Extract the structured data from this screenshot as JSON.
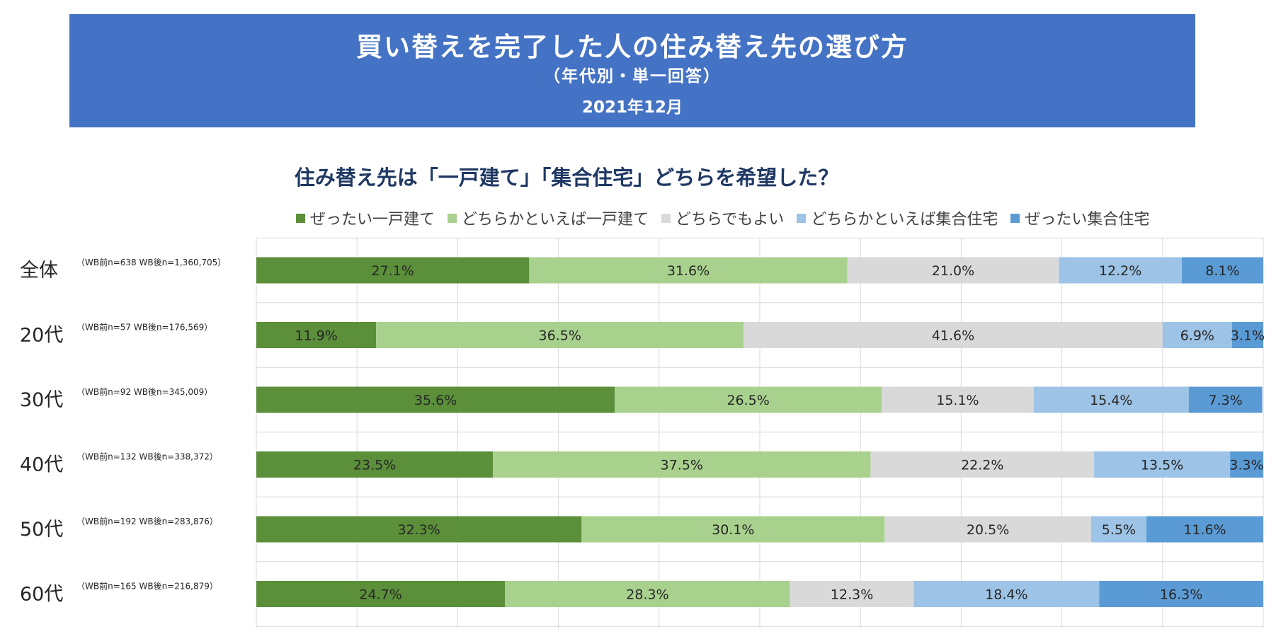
{
  "header": {
    "title": "買い替えを完了した人の住み替え先の選び方",
    "subtitle": "（年代別・単一回答）",
    "date": "2021年12月"
  },
  "chart_data": {
    "type": "bar",
    "orientation": "horizontal",
    "stacked": true,
    "percent_stacked": true,
    "title": "住み替え先は「一戸建て」「集合住宅」どちらを希望した？",
    "xlim": [
      0,
      100
    ],
    "grid": true,
    "legend_position": "top",
    "categories": [
      "全体",
      "20代",
      "30代",
      "40代",
      "50代",
      "60代"
    ],
    "sample_labels": [
      "（WB前n=638 WB後n=1,360,705）",
      "（WB前n=57 WB後n=176,569）",
      "（WB前n=92 WB後n=345,009）",
      "（WB前n=132 WB後n=338,372）",
      "（WB前n=192 WB後n=283,876）",
      "（WB前n=165 WB後n=216,879）"
    ],
    "series": [
      {
        "name": "ぜったい一戸建て",
        "color": "#5b8f3a",
        "values": [
          27.1,
          11.9,
          35.6,
          23.5,
          32.3,
          24.7
        ]
      },
      {
        "name": "どちらかといえば一戸建て",
        "color": "#a9d18e",
        "values": [
          31.6,
          36.5,
          26.5,
          37.5,
          30.1,
          28.3
        ]
      },
      {
        "name": "どちらでもよい",
        "color": "#d9d9d9",
        "values": [
          21.0,
          41.6,
          15.1,
          22.2,
          20.5,
          12.3
        ]
      },
      {
        "name": "どちらかといえば集合住宅",
        "color": "#9dc3e6",
        "values": [
          12.2,
          6.9,
          15.4,
          13.5,
          5.5,
          18.4
        ]
      },
      {
        "name": "ぜったい集合住宅",
        "color": "#5b9bd5",
        "values": [
          8.1,
          3.1,
          7.3,
          3.3,
          11.6,
          16.3
        ]
      }
    ]
  }
}
